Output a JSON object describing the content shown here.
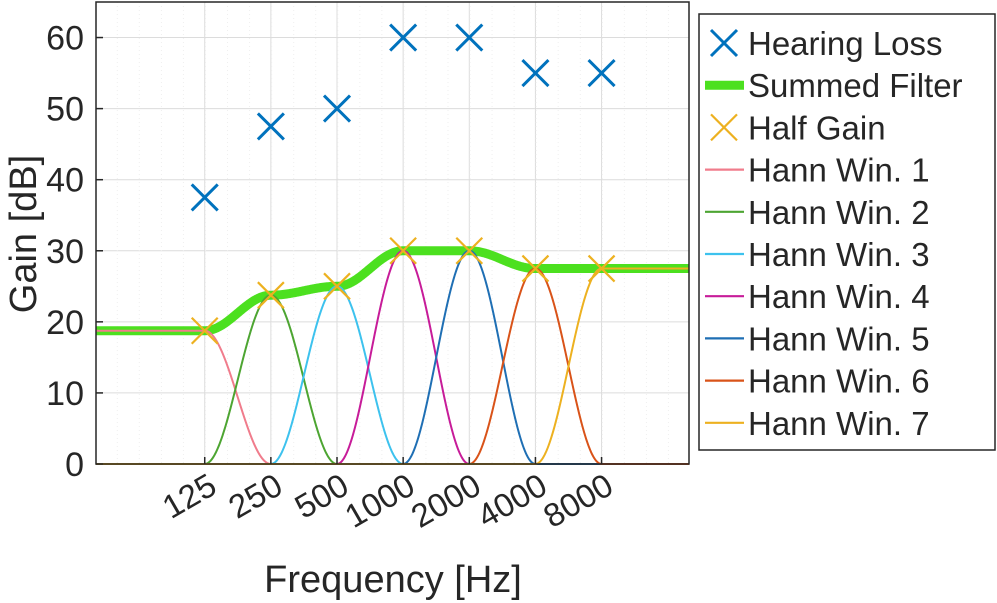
{
  "chart_data": {
    "type": "line",
    "title": "",
    "xlabel": "Frequency [Hz]",
    "ylabel": "Gain [dB]",
    "ylim": [
      0,
      65
    ],
    "yticks": [
      0,
      10,
      20,
      30,
      40,
      50,
      60
    ],
    "x_scale": "octave (log2)",
    "xlim": [
      40,
      20000
    ],
    "xticks": [
      125,
      250,
      500,
      1000,
      2000,
      4000,
      8000
    ],
    "xtick_labels": [
      "125",
      "250",
      "500",
      "1000",
      "2000",
      "4000",
      "8000"
    ],
    "grid": true,
    "legend_position": "outside-right",
    "hearing_loss": {
      "name": "Hearing Loss",
      "color": "#0072BD",
      "marker": "x",
      "x": [
        125,
        250,
        500,
        1000,
        2000,
        4000,
        8000
      ],
      "y": [
        37.5,
        47.5,
        50,
        60,
        60,
        55,
        55
      ]
    },
    "half_gain": {
      "name": "Half Gain",
      "color": "#EDB120",
      "marker": "x",
      "x": [
        125,
        250,
        500,
        1000,
        2000,
        4000,
        8000
      ],
      "y": [
        18.75,
        23.75,
        25,
        30,
        30,
        27.5,
        27.5
      ]
    },
    "summed_filter": {
      "name": "Summed Filter",
      "color": "#4CE01F",
      "x": [
        40,
        125,
        250,
        500,
        1000,
        2000,
        4000,
        8000,
        20000
      ],
      "y": [
        18.75,
        18.75,
        23.75,
        25,
        30,
        30,
        27.5,
        27.5,
        27.5
      ]
    },
    "hann_windows": [
      {
        "name": "Hann Win. 1",
        "color": "#F07C8C",
        "center": 125,
        "peak": 18.75,
        "flat_left": true
      },
      {
        "name": "Hann Win. 2",
        "color": "#4DA532",
        "center": 250,
        "peak": 23.75
      },
      {
        "name": "Hann Win. 3",
        "color": "#3DC2EE",
        "center": 500,
        "peak": 25
      },
      {
        "name": "Hann Win. 4",
        "color": "#C71C99",
        "center": 1000,
        "peak": 30
      },
      {
        "name": "Hann Win. 5",
        "color": "#1F6FB4",
        "center": 2000,
        "peak": 30
      },
      {
        "name": "Hann Win. 6",
        "color": "#D95319",
        "center": 4000,
        "peak": 27.5
      },
      {
        "name": "Hann Win. 7",
        "color": "#EDB120",
        "center": 8000,
        "peak": 27.5,
        "flat_right": true
      }
    ],
    "legend": [
      {
        "label": "Hearing Loss",
        "style": "marker-x",
        "color": "#0072BD"
      },
      {
        "label": "Summed Filter",
        "style": "thick-line",
        "color": "#4CE01F"
      },
      {
        "label": "Half Gain",
        "style": "marker-x",
        "color": "#EDB120"
      },
      {
        "label": "Hann Win. 1",
        "style": "line",
        "color": "#F07C8C"
      },
      {
        "label": "Hann Win. 2",
        "style": "line",
        "color": "#4DA532"
      },
      {
        "label": "Hann Win. 3",
        "style": "line",
        "color": "#3DC2EE"
      },
      {
        "label": "Hann Win. 4",
        "style": "line",
        "color": "#C71C99"
      },
      {
        "label": "Hann Win. 5",
        "style": "line",
        "color": "#1F6FB4"
      },
      {
        "label": "Hann Win. 6",
        "style": "line",
        "color": "#D95319"
      },
      {
        "label": "Hann Win. 7",
        "style": "line",
        "color": "#EDB120"
      }
    ]
  }
}
